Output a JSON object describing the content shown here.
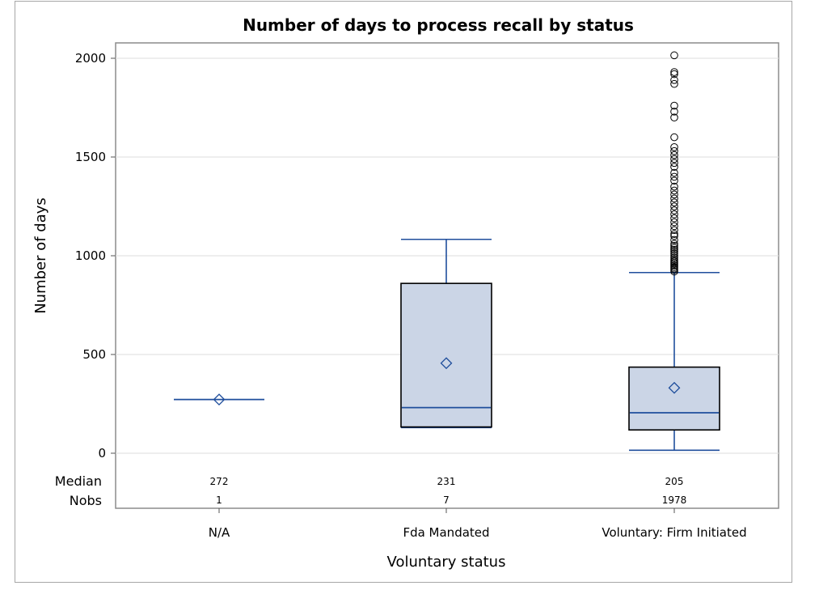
{
  "chart_data": {
    "type": "box",
    "title": "Number of days to process recall by status",
    "xlabel": "Voluntary status",
    "ylabel": "Number of days",
    "ylim": [
      -40,
      2060
    ],
    "yticks": [
      0,
      500,
      1000,
      1500,
      2000
    ],
    "grid": true,
    "box_fill": "#cbd5e6",
    "line_color": "#1f4e9c",
    "categories": [
      "N/A",
      "Fda Mandated",
      "Voluntary: Firm Initiated"
    ],
    "inset_labels": [
      "Median",
      "Nobs"
    ],
    "boxes": [
      {
        "category": "N/A",
        "q1": 272,
        "median": 272,
        "q3": 272,
        "mean": 272,
        "whisker_low": 272,
        "whisker_high": 272,
        "nobs": "1",
        "median_label": "272",
        "outliers": []
      },
      {
        "category": "Fda Mandated",
        "q1": 133,
        "median": 231,
        "q3": 860,
        "mean": 456,
        "whisker_low": 130,
        "whisker_high": 1083,
        "nobs": "7",
        "median_label": "231",
        "outliers": []
      },
      {
        "category": "Voluntary: Firm Initiated",
        "q1": 118,
        "median": 205,
        "q3": 436,
        "mean": 331,
        "whisker_low": 15,
        "whisker_high": 915,
        "nobs": "1978",
        "median_label": "205",
        "outliers": [
          920,
          928,
          935,
          942,
          950,
          958,
          965,
          972,
          980,
          990,
          1000,
          1010,
          1020,
          1030,
          1040,
          1050,
          1060,
          1080,
          1100,
          1110,
          1130,
          1150,
          1170,
          1190,
          1210,
          1230,
          1250,
          1270,
          1290,
          1310,
          1330,
          1350,
          1380,
          1400,
          1420,
          1450,
          1470,
          1490,
          1510,
          1530,
          1550,
          1600,
          1700,
          1730,
          1760,
          1870,
          1890,
          1920,
          1930,
          2015
        ]
      }
    ]
  }
}
